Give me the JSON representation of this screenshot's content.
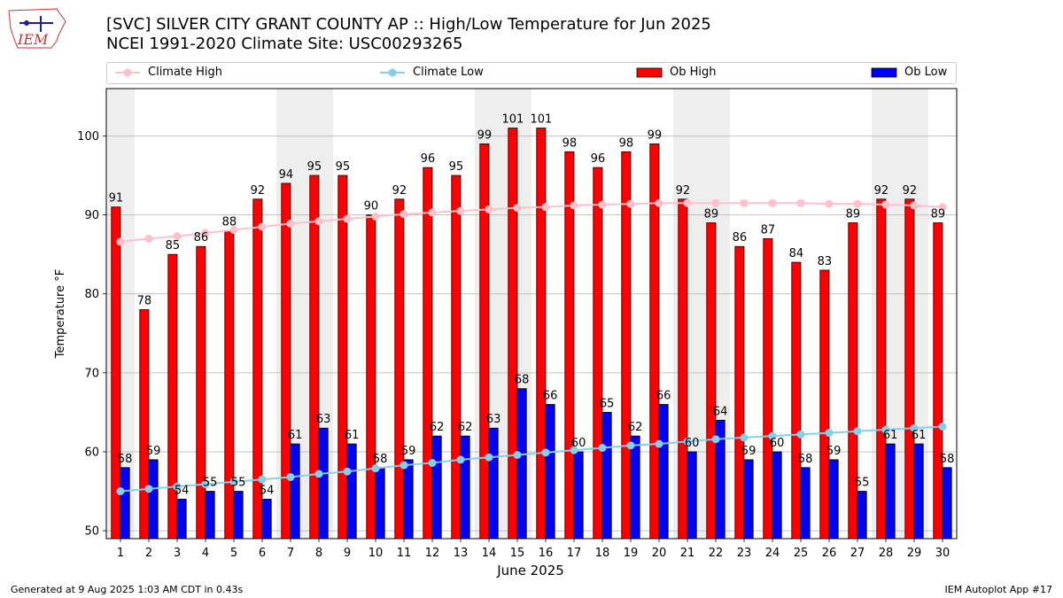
{
  "header": {
    "title_line1": "[SVC] SILVER CITY GRANT COUNTY AP :: High/Low Temperature for Jun 2025",
    "title_line2": "NCEI 1991-2020 Climate Site: USC00293265",
    "logo_text": "IEM"
  },
  "footer": {
    "left": "Generated at 9 Aug 2025 1:03 AM CDT in 0.43s",
    "right": "IEM Autoplot App #17"
  },
  "colors": {
    "ob_high": "#ff0000",
    "ob_low": "#0000ff",
    "climate_high": "#ffc0cb",
    "climate_low": "#87ceeb",
    "weekend_band": "#eeeeee",
    "grid": "#b0b0b0"
  },
  "chart_data": {
    "type": "bar",
    "xlabel": "June 2025",
    "ylabel": "Temperature °F",
    "ylim": [
      49,
      106
    ],
    "yticks": [
      50,
      60,
      70,
      80,
      90,
      100
    ],
    "grid": "horizontal",
    "legend_placement": "top",
    "weekend_days": [
      1,
      7,
      8,
      14,
      15,
      21,
      22,
      28,
      29
    ],
    "categories": [
      "1",
      "2",
      "3",
      "4",
      "5",
      "6",
      "7",
      "8",
      "9",
      "10",
      "11",
      "12",
      "13",
      "14",
      "15",
      "16",
      "17",
      "18",
      "19",
      "20",
      "21",
      "22",
      "23",
      "24",
      "25",
      "26",
      "27",
      "28",
      "29",
      "30"
    ],
    "series": [
      {
        "name": "Ob High",
        "kind": "bar",
        "values": [
          91,
          78,
          85,
          86,
          88,
          92,
          94,
          95,
          95,
          90,
          92,
          96,
          95,
          99,
          101,
          101,
          98,
          96,
          98,
          99,
          92,
          89,
          86,
          87,
          84,
          83,
          89,
          92,
          92,
          89
        ]
      },
      {
        "name": "Ob Low",
        "kind": "bar",
        "values": [
          58,
          59,
          54,
          55,
          55,
          54,
          61,
          63,
          61,
          58,
          59,
          62,
          62,
          63,
          68,
          66,
          60,
          65,
          62,
          66,
          60,
          64,
          59,
          60,
          58,
          59,
          55,
          61,
          61,
          58
        ]
      },
      {
        "name": "Climate High",
        "kind": "line",
        "values": [
          86.6,
          87.0,
          87.3,
          87.7,
          88.1,
          88.5,
          88.9,
          89.2,
          89.5,
          89.8,
          90.1,
          90.3,
          90.5,
          90.7,
          90.9,
          91.0,
          91.2,
          91.3,
          91.4,
          91.5,
          91.5,
          91.5,
          91.5,
          91.5,
          91.5,
          91.4,
          91.4,
          91.3,
          91.2,
          91.0
        ]
      },
      {
        "name": "Climate Low",
        "kind": "line",
        "values": [
          55.0,
          55.3,
          55.6,
          55.9,
          56.2,
          56.5,
          56.8,
          57.2,
          57.5,
          57.9,
          58.3,
          58.6,
          59.0,
          59.3,
          59.6,
          59.9,
          60.2,
          60.5,
          60.8,
          61.0,
          61.3,
          61.6,
          61.8,
          62.0,
          62.2,
          62.4,
          62.6,
          62.8,
          63.0,
          63.2
        ]
      }
    ]
  }
}
